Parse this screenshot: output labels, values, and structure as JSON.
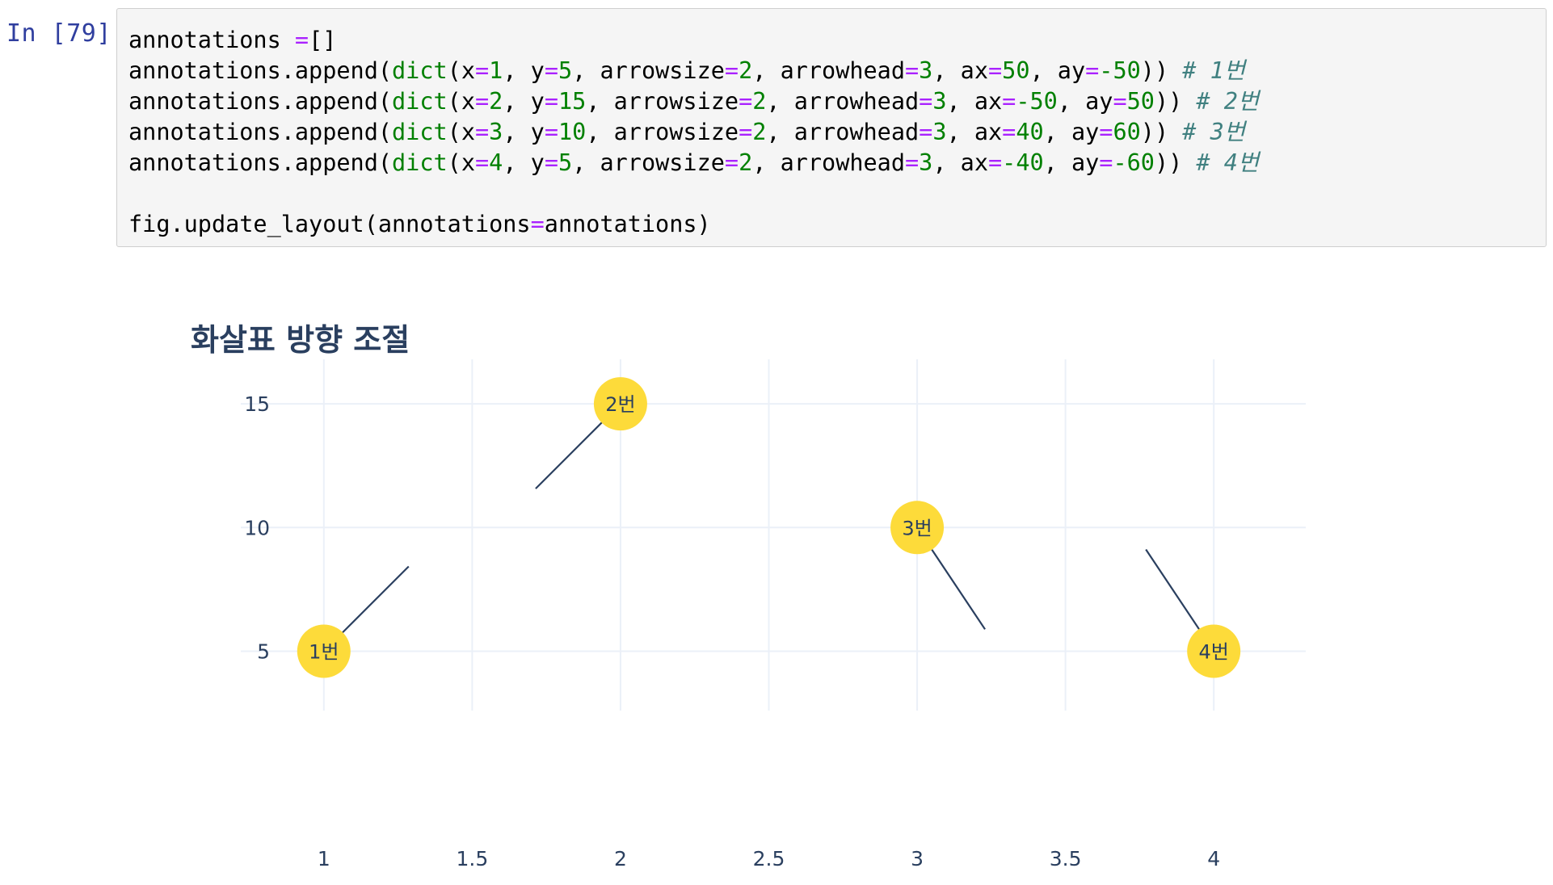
{
  "cell": {
    "prompt": "In [79]:",
    "code_lines": [
      [
        {
          "t": "annotations ",
          "c": ""
        },
        {
          "t": "=",
          "c": "eq"
        },
        {
          "t": "[]",
          "c": ""
        }
      ],
      [
        {
          "t": "annotations.append(",
          "c": ""
        },
        {
          "t": "dict",
          "c": "bi"
        },
        {
          "t": "(x",
          "c": ""
        },
        {
          "t": "=",
          "c": "eq"
        },
        {
          "t": "1",
          "c": "num"
        },
        {
          "t": ", y",
          "c": ""
        },
        {
          "t": "=",
          "c": "eq"
        },
        {
          "t": "5",
          "c": "num"
        },
        {
          "t": ", arrowsize",
          "c": ""
        },
        {
          "t": "=",
          "c": "eq"
        },
        {
          "t": "2",
          "c": "num"
        },
        {
          "t": ", arrowhead",
          "c": ""
        },
        {
          "t": "=",
          "c": "eq"
        },
        {
          "t": "3",
          "c": "num"
        },
        {
          "t": ", ax",
          "c": ""
        },
        {
          "t": "=",
          "c": "eq"
        },
        {
          "t": "50",
          "c": "num"
        },
        {
          "t": ", ay",
          "c": ""
        },
        {
          "t": "=",
          "c": "eq"
        },
        {
          "t": "-50",
          "c": "num"
        },
        {
          "t": ")) ",
          "c": ""
        },
        {
          "t": "# 1번",
          "c": "cm"
        }
      ],
      [
        {
          "t": "annotations.append(",
          "c": ""
        },
        {
          "t": "dict",
          "c": "bi"
        },
        {
          "t": "(x",
          "c": ""
        },
        {
          "t": "=",
          "c": "eq"
        },
        {
          "t": "2",
          "c": "num"
        },
        {
          "t": ", y",
          "c": ""
        },
        {
          "t": "=",
          "c": "eq"
        },
        {
          "t": "15",
          "c": "num"
        },
        {
          "t": ", arrowsize",
          "c": ""
        },
        {
          "t": "=",
          "c": "eq"
        },
        {
          "t": "2",
          "c": "num"
        },
        {
          "t": ", arrowhead",
          "c": ""
        },
        {
          "t": "=",
          "c": "eq"
        },
        {
          "t": "3",
          "c": "num"
        },
        {
          "t": ", ax",
          "c": ""
        },
        {
          "t": "=",
          "c": "eq"
        },
        {
          "t": "-50",
          "c": "num"
        },
        {
          "t": ", ay",
          "c": ""
        },
        {
          "t": "=",
          "c": "eq"
        },
        {
          "t": "50",
          "c": "num"
        },
        {
          "t": ")) ",
          "c": ""
        },
        {
          "t": "# 2번",
          "c": "cm"
        }
      ],
      [
        {
          "t": "annotations.append(",
          "c": ""
        },
        {
          "t": "dict",
          "c": "bi"
        },
        {
          "t": "(x",
          "c": ""
        },
        {
          "t": "=",
          "c": "eq"
        },
        {
          "t": "3",
          "c": "num"
        },
        {
          "t": ", y",
          "c": ""
        },
        {
          "t": "=",
          "c": "eq"
        },
        {
          "t": "10",
          "c": "num"
        },
        {
          "t": ", arrowsize",
          "c": ""
        },
        {
          "t": "=",
          "c": "eq"
        },
        {
          "t": "2",
          "c": "num"
        },
        {
          "t": ", arrowhead",
          "c": ""
        },
        {
          "t": "=",
          "c": "eq"
        },
        {
          "t": "3",
          "c": "num"
        },
        {
          "t": ", ax",
          "c": ""
        },
        {
          "t": "=",
          "c": "eq"
        },
        {
          "t": "40",
          "c": "num"
        },
        {
          "t": ", ay",
          "c": ""
        },
        {
          "t": "=",
          "c": "eq"
        },
        {
          "t": "60",
          "c": "num"
        },
        {
          "t": ")) ",
          "c": ""
        },
        {
          "t": "# 3번",
          "c": "cm"
        }
      ],
      [
        {
          "t": "annotations.append(",
          "c": ""
        },
        {
          "t": "dict",
          "c": "bi"
        },
        {
          "t": "(x",
          "c": ""
        },
        {
          "t": "=",
          "c": "eq"
        },
        {
          "t": "4",
          "c": "num"
        },
        {
          "t": ", y",
          "c": ""
        },
        {
          "t": "=",
          "c": "eq"
        },
        {
          "t": "5",
          "c": "num"
        },
        {
          "t": ", arrowsize",
          "c": ""
        },
        {
          "t": "=",
          "c": "eq"
        },
        {
          "t": "2",
          "c": "num"
        },
        {
          "t": ", arrowhead",
          "c": ""
        },
        {
          "t": "=",
          "c": "eq"
        },
        {
          "t": "3",
          "c": "num"
        },
        {
          "t": ", ax",
          "c": ""
        },
        {
          "t": "=",
          "c": "eq"
        },
        {
          "t": "-40",
          "c": "num"
        },
        {
          "t": ", ay",
          "c": ""
        },
        {
          "t": "=",
          "c": "eq"
        },
        {
          "t": "-60",
          "c": "num"
        },
        {
          "t": ")) ",
          "c": ""
        },
        {
          "t": "# 4번",
          "c": "cm"
        }
      ],
      [],
      [
        {
          "t": "fig.update_layout(annotations",
          "c": ""
        },
        {
          "t": "=",
          "c": "eq"
        },
        {
          "t": "annotations)",
          "c": ""
        }
      ]
    ]
  },
  "colors": {
    "marker": "#fddb3a",
    "arrow": "#2a3f5f",
    "grid": "#ebf0f8",
    "text": "#2a3f5f",
    "code_eq": "#aa22ff",
    "code_num": "#008000",
    "code_comment": "#408080",
    "prompt": "#303f9f"
  },
  "chart_data": {
    "type": "scatter",
    "title": "화살표 방향 조절",
    "xlabel": "",
    "ylabel": "",
    "x": [
      1,
      2,
      3,
      4
    ],
    "y": [
      5,
      15,
      10,
      5
    ],
    "xticks": [
      "1",
      "1.5",
      "2",
      "2.5",
      "3",
      "3.5",
      "4"
    ],
    "yticks": [
      "5",
      "10",
      "15"
    ],
    "xlim": [
      0.72,
      4.31
    ],
    "ylim": [
      2.6,
      16.8
    ],
    "grid": true,
    "marker_color": "#fddb3a",
    "annotations": [
      {
        "x": 1,
        "y": 5,
        "text": "1번",
        "ax": 50,
        "ay": -50,
        "arrowsize": 2,
        "arrowhead": 3
      },
      {
        "x": 2,
        "y": 15,
        "text": "2번",
        "ax": -50,
        "ay": 50,
        "arrowsize": 2,
        "arrowhead": 3
      },
      {
        "x": 3,
        "y": 10,
        "text": "3번",
        "ax": 40,
        "ay": 60,
        "arrowsize": 2,
        "arrowhead": 3
      },
      {
        "x": 4,
        "y": 5,
        "text": "4번",
        "ax": -40,
        "ay": -60,
        "arrowsize": 2,
        "arrowhead": 3
      }
    ]
  }
}
